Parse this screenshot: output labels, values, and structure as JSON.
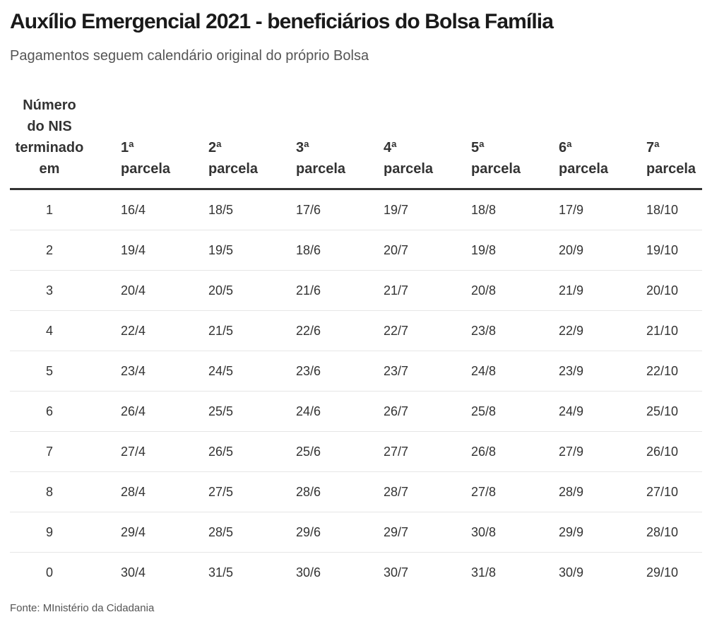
{
  "title": "Auxílio Emergencial 2021 - beneficiários do Bolsa Família",
  "subtitle": "Pagamentos seguem calendário original do próprio Bolsa",
  "source": "Fonte: MInistério da Cidadania",
  "chart_data": {
    "type": "table",
    "title": "Auxílio Emergencial 2021 - beneficiários do Bolsa Família",
    "subtitle": "Pagamentos seguem calendário original do próprio Bolsa",
    "columns": [
      {
        "lines": [
          "Número",
          "do NIS",
          "terminado",
          "em"
        ]
      },
      {
        "lines": [
          "1ª",
          "parcela"
        ]
      },
      {
        "lines": [
          "2ª",
          "parcela"
        ]
      },
      {
        "lines": [
          "3ª",
          "parcela"
        ]
      },
      {
        "lines": [
          "4ª",
          "parcela"
        ]
      },
      {
        "lines": [
          "5ª",
          "parcela"
        ]
      },
      {
        "lines": [
          "6ª",
          "parcela"
        ]
      },
      {
        "lines": [
          "7ª",
          "parcela"
        ]
      }
    ],
    "rows": [
      [
        "1",
        "16/4",
        "18/5",
        "17/6",
        "19/7",
        "18/8",
        "17/9",
        "18/10"
      ],
      [
        "2",
        "19/4",
        "19/5",
        "18/6",
        "20/7",
        "19/8",
        "20/9",
        "19/10"
      ],
      [
        "3",
        "20/4",
        "20/5",
        "21/6",
        "21/7",
        "20/8",
        "21/9",
        "20/10"
      ],
      [
        "4",
        "22/4",
        "21/5",
        "22/6",
        "22/7",
        "23/8",
        "22/9",
        "21/10"
      ],
      [
        "5",
        "23/4",
        "24/5",
        "23/6",
        "23/7",
        "24/8",
        "23/9",
        "22/10"
      ],
      [
        "6",
        "26/4",
        "25/5",
        "24/6",
        "26/7",
        "25/8",
        "24/9",
        "25/10"
      ],
      [
        "7",
        "27/4",
        "26/5",
        "25/6",
        "27/7",
        "26/8",
        "27/9",
        "26/10"
      ],
      [
        "8",
        "28/4",
        "27/5",
        "28/6",
        "28/7",
        "27/8",
        "28/9",
        "27/10"
      ],
      [
        "9",
        "29/4",
        "28/5",
        "29/6",
        "29/7",
        "30/8",
        "29/9",
        "28/10"
      ],
      [
        "0",
        "30/4",
        "31/5",
        "30/6",
        "30/7",
        "31/8",
        "30/9",
        "29/10"
      ]
    ],
    "colors": {
      "text": "#333333",
      "header_rule": "#333333",
      "row_rule": "#e6e6e6"
    }
  }
}
